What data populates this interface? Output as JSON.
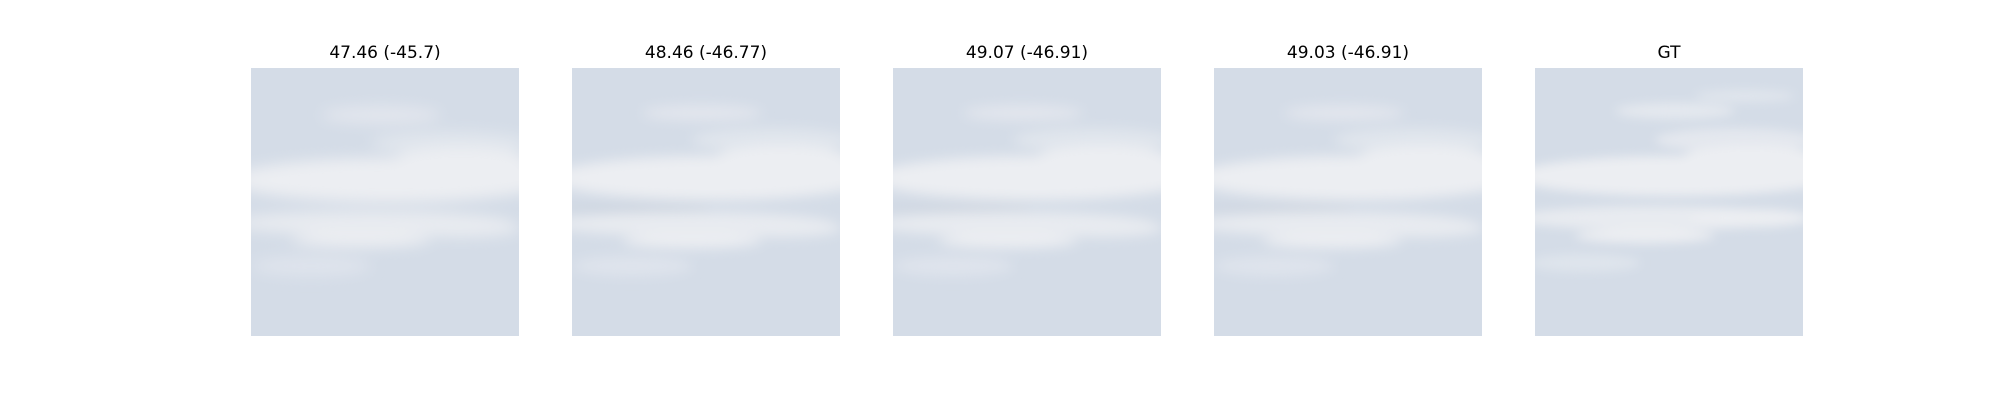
{
  "panels": [
    {
      "title": "47.46 (-45.7)",
      "image": "cloudy-sky-reconstruction"
    },
    {
      "title": "48.46 (-46.77)",
      "image": "cloudy-sky-reconstruction"
    },
    {
      "title": "49.07 (-46.91)",
      "image": "cloudy-sky-reconstruction"
    },
    {
      "title": "49.03 (-46.91)",
      "image": "cloudy-sky-reconstruction"
    },
    {
      "title": "GT",
      "image": "cloudy-sky-ground-truth"
    }
  ],
  "colors": {
    "sky": "#d5dde8",
    "cloud": "#eceef2",
    "title_text": "#000000",
    "background": "#ffffff"
  }
}
